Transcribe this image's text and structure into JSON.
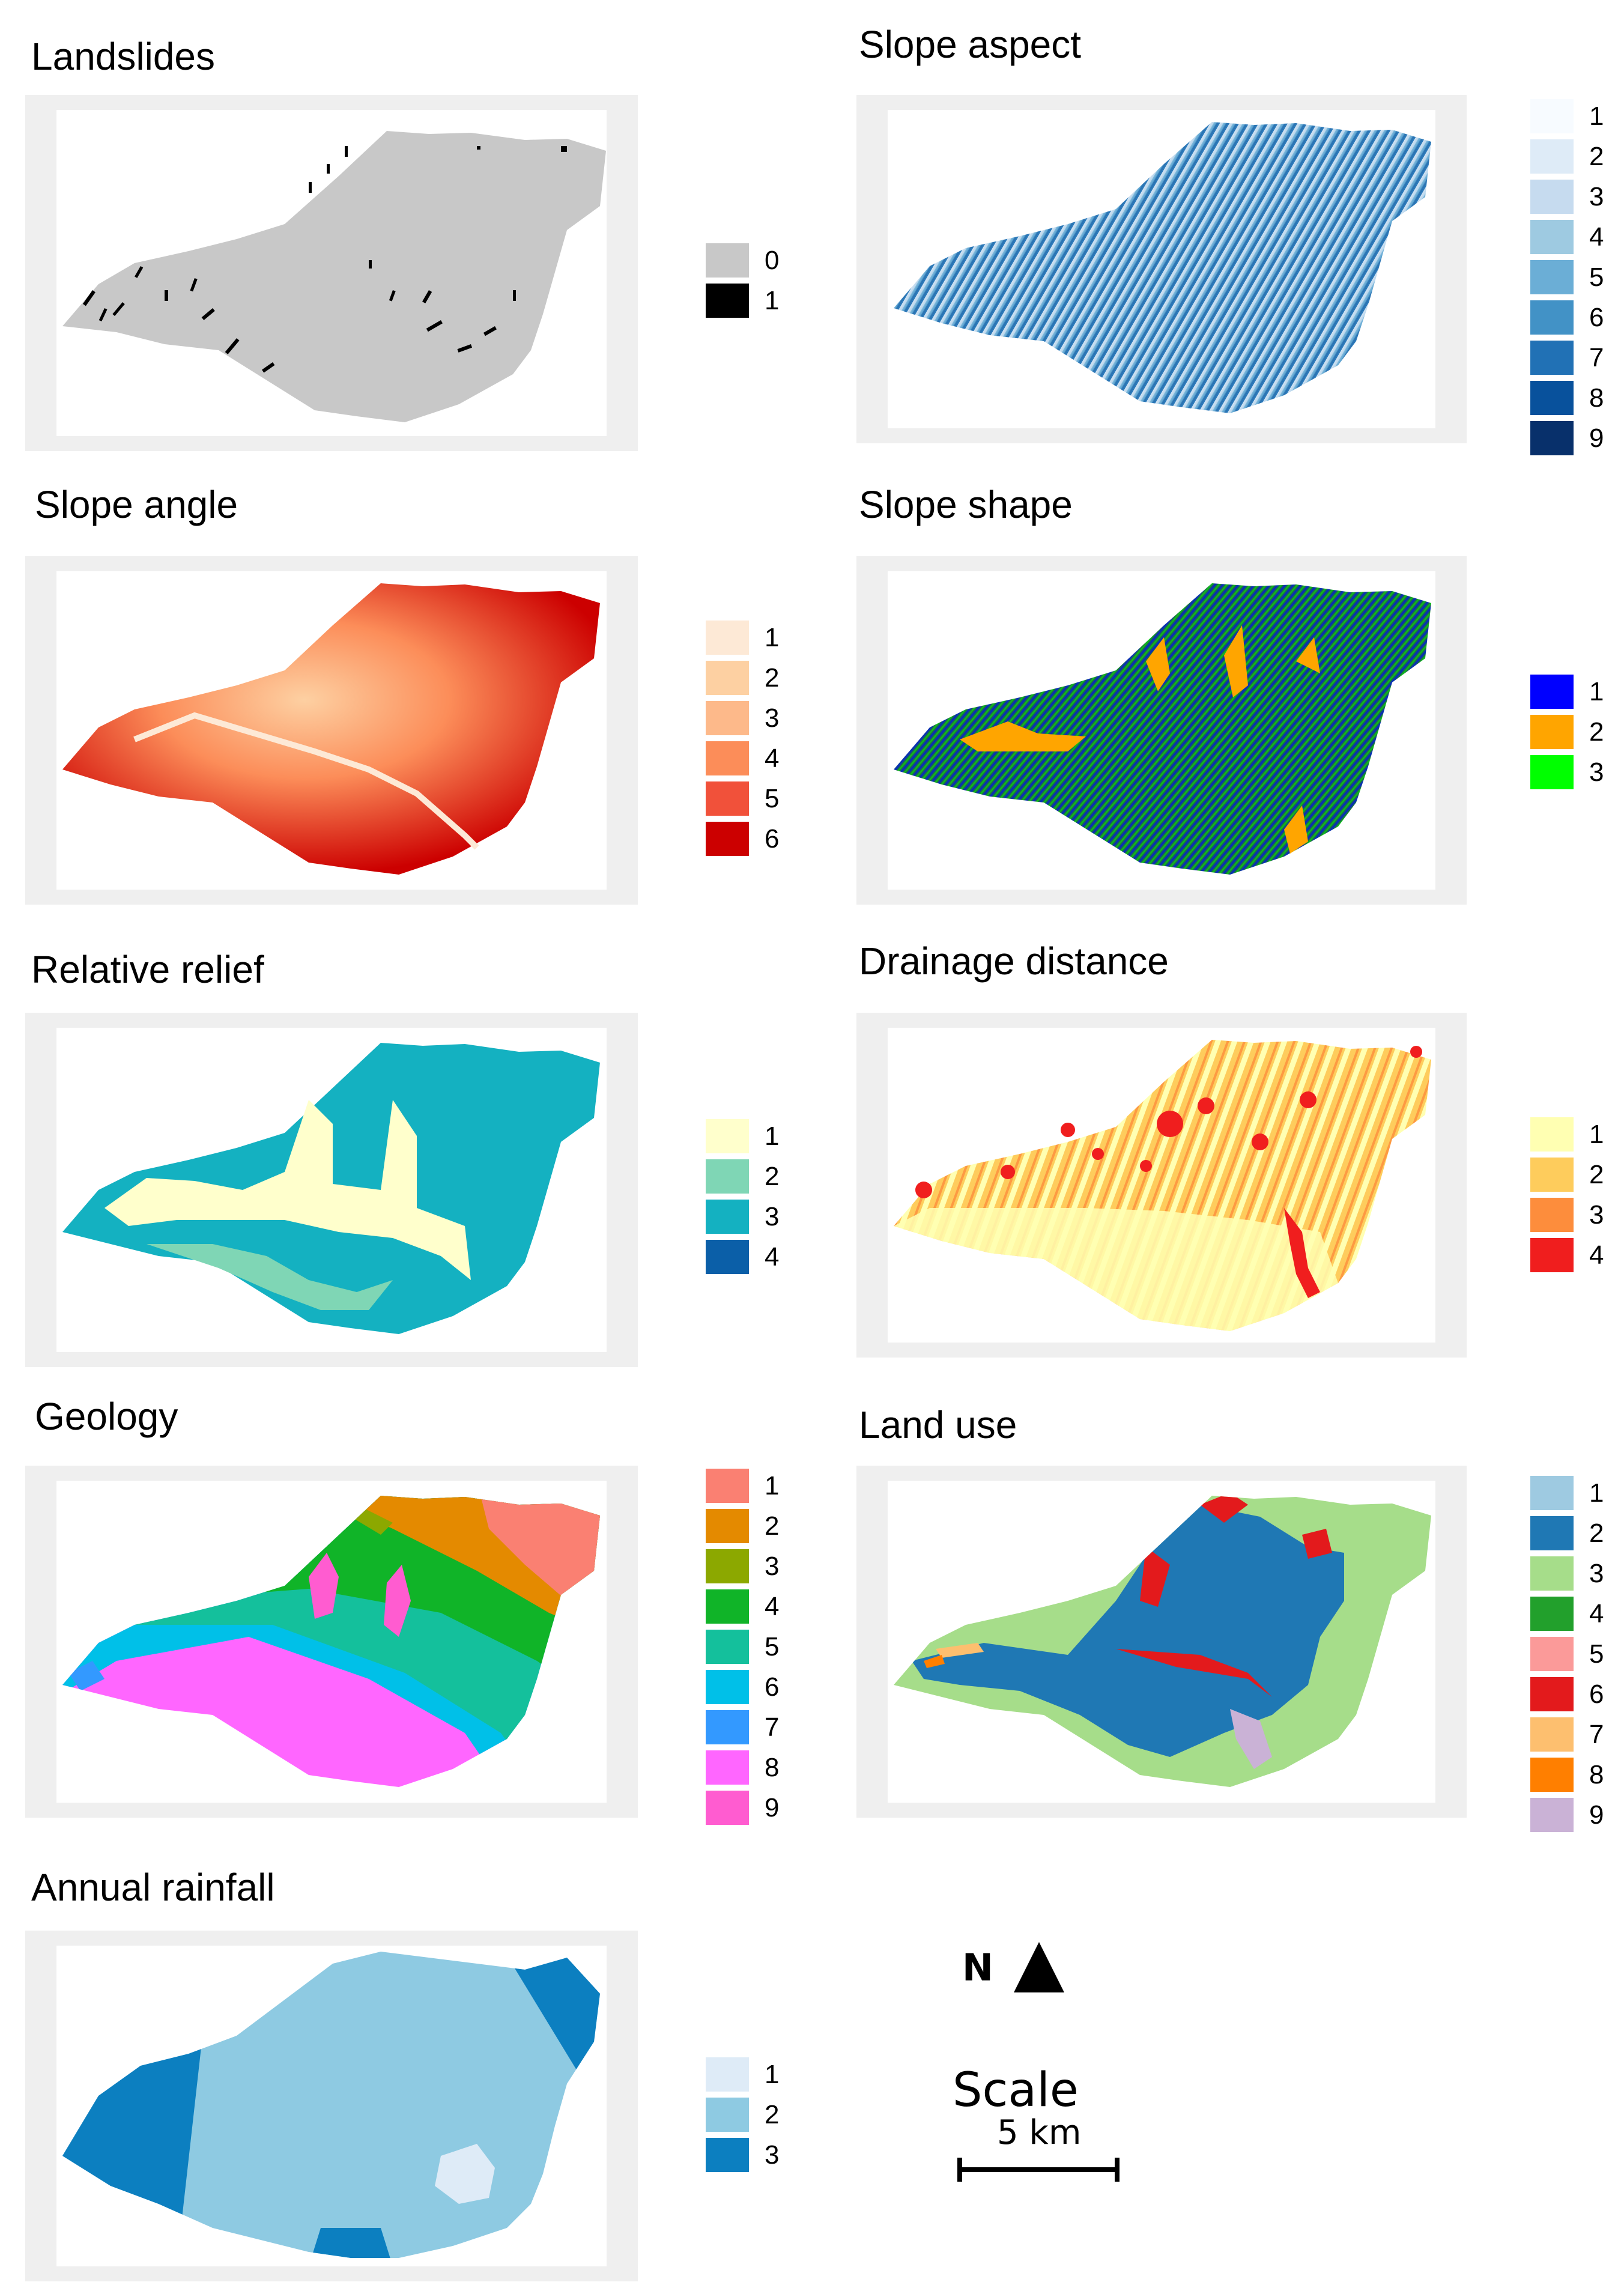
{
  "panels": [
    {
      "title": "Landslides",
      "legend": [
        {
          "label": "0",
          "color": "#c8c8c8"
        },
        {
          "label": "1",
          "color": "#000000"
        }
      ]
    },
    {
      "title": "Slope aspect",
      "legend": [
        {
          "label": "1",
          "color": "#f7fbff"
        },
        {
          "label": "2",
          "color": "#deebf7"
        },
        {
          "label": "3",
          "color": "#c6dbef"
        },
        {
          "label": "4",
          "color": "#9ecae1"
        },
        {
          "label": "5",
          "color": "#6baed6"
        },
        {
          "label": "6",
          "color": "#4292c6"
        },
        {
          "label": "7",
          "color": "#2171b5"
        },
        {
          "label": "8",
          "color": "#08519c"
        },
        {
          "label": "9",
          "color": "#08306b"
        }
      ]
    },
    {
      "title": "Slope angle",
      "legend": [
        {
          "label": "1",
          "color": "#fde9d6"
        },
        {
          "label": "2",
          "color": "#fdd0a2"
        },
        {
          "label": "3",
          "color": "#fdb98a"
        },
        {
          "label": "4",
          "color": "#fc8d59"
        },
        {
          "label": "5",
          "color": "#f1513a"
        },
        {
          "label": "6",
          "color": "#cc0000"
        }
      ]
    },
    {
      "title": "Slope shape",
      "legend": [
        {
          "label": "1",
          "color": "#0000ff"
        },
        {
          "label": "2",
          "color": "#ffa500"
        },
        {
          "label": "3",
          "color": "#00ff00"
        }
      ]
    },
    {
      "title": "Relative relief",
      "legend": [
        {
          "label": "1",
          "color": "#ffffcc"
        },
        {
          "label": "2",
          "color": "#7fd6b5"
        },
        {
          "label": "3",
          "color": "#14b1c1"
        },
        {
          "label": "4",
          "color": "#0b5fa8"
        }
      ]
    },
    {
      "title": "Drainage distance",
      "legend": [
        {
          "label": "1",
          "color": "#ffffb2"
        },
        {
          "label": "2",
          "color": "#fecc5c"
        },
        {
          "label": "3",
          "color": "#fd8d3c"
        },
        {
          "label": "4",
          "color": "#f01e1e"
        }
      ]
    },
    {
      "title": "Geology",
      "legend": [
        {
          "label": "1",
          "color": "#fa8072"
        },
        {
          "label": "2",
          "color": "#e48a00"
        },
        {
          "label": "3",
          "color": "#8ca800"
        },
        {
          "label": "4",
          "color": "#10b428"
        },
        {
          "label": "5",
          "color": "#14c09c"
        },
        {
          "label": "6",
          "color": "#00c0e8"
        },
        {
          "label": "7",
          "color": "#3399ff"
        },
        {
          "label": "8",
          "color": "#ff66ff"
        },
        {
          "label": "9",
          "color": "#ff5cd0"
        }
      ]
    },
    {
      "title": "Land use",
      "legend": [
        {
          "label": "1",
          "color": "#9ecae1"
        },
        {
          "label": "2",
          "color": "#1f78b4"
        },
        {
          "label": "3",
          "color": "#a6dd8a"
        },
        {
          "label": "4",
          "color": "#22a02c"
        },
        {
          "label": "5",
          "color": "#fb9a99"
        },
        {
          "label": "6",
          "color": "#e31a1c"
        },
        {
          "label": "7",
          "color": "#fdbf6f"
        },
        {
          "label": "8",
          "color": "#ff7f00"
        },
        {
          "label": "9",
          "color": "#cab2d6"
        }
      ]
    },
    {
      "title": "Annual rainfall",
      "legend": [
        {
          "label": "1",
          "color": "#deebf7"
        },
        {
          "label": "2",
          "color": "#8ecae2"
        },
        {
          "label": "3",
          "color": "#0c7fc0"
        }
      ]
    }
  ],
  "north_arrow": {
    "letter": "N"
  },
  "scale": {
    "title": "Scale",
    "label": "5 km"
  }
}
